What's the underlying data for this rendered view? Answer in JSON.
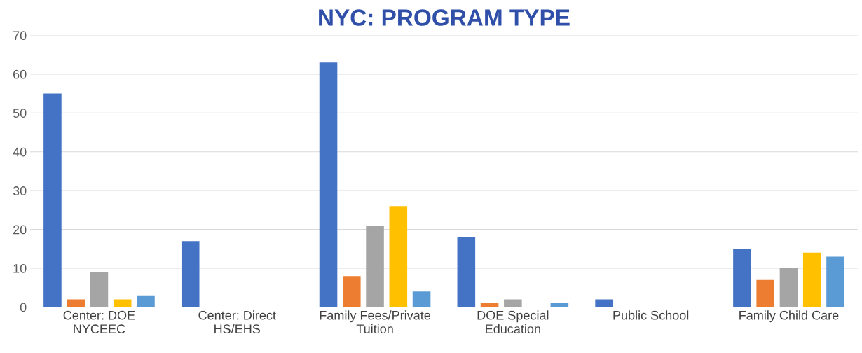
{
  "chart_data": {
    "type": "bar",
    "title": "NYC: PROGRAM TYPE",
    "categories": [
      "Center: DOE NYCEEC",
      "Center: Direct HS/EHS",
      "Family Fees/Private Tuition",
      "DOE Special Education",
      "Public School",
      "Family Child Care"
    ],
    "series": [
      {
        "color": "#4472c4",
        "values": [
          55,
          17,
          63,
          18,
          2,
          15
        ]
      },
      {
        "color": "#ed7d31",
        "values": [
          2,
          0,
          8,
          1,
          0,
          7
        ]
      },
      {
        "color": "#a5a5a5",
        "values": [
          9,
          0,
          21,
          2,
          0,
          10
        ]
      },
      {
        "color": "#ffc000",
        "values": [
          2,
          0,
          26,
          0,
          0,
          14
        ]
      },
      {
        "color": "#5b9bd5",
        "values": [
          3,
          0,
          4,
          1,
          0,
          13
        ]
      }
    ],
    "ylim": [
      0,
      70
    ],
    "yticks": [
      0,
      10,
      20,
      30,
      40,
      50,
      60,
      70
    ],
    "grid": "y",
    "legend": false
  }
}
